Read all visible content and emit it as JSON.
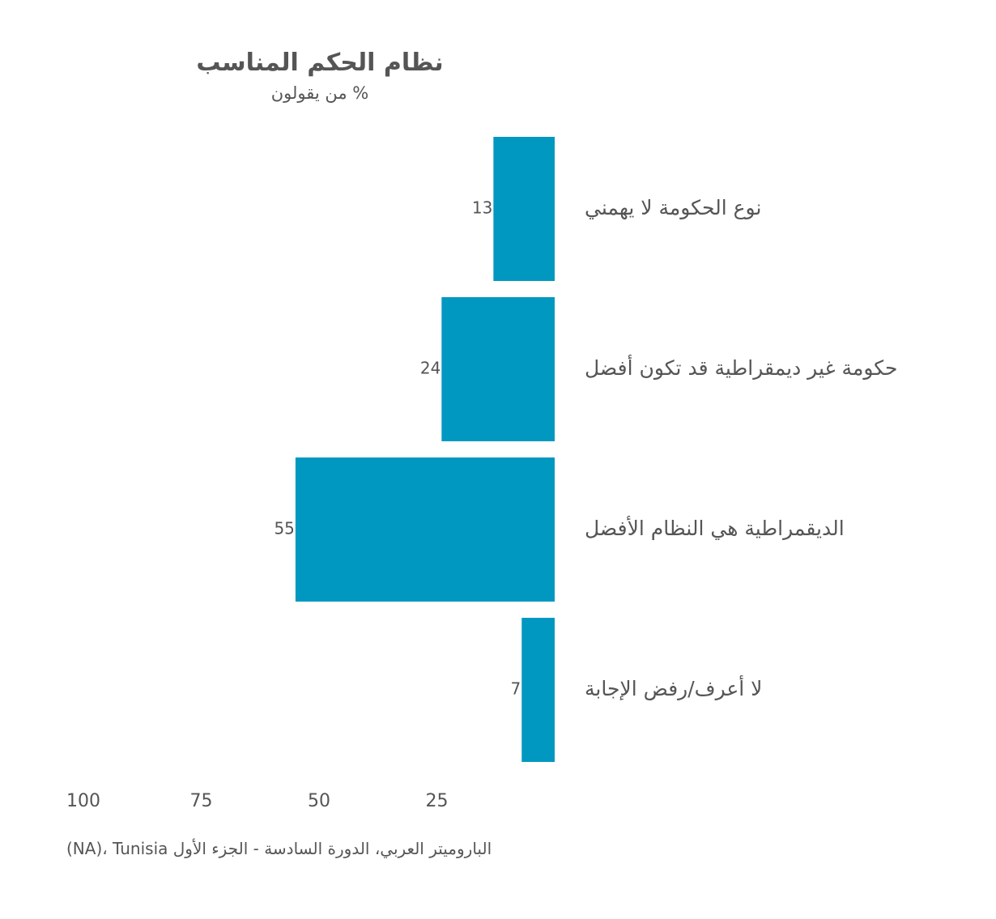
{
  "title": "نظام الحكم المناسب",
  "subtitle": "% من يقولون",
  "source": "(NA)، Tunisia الباروميتر العربي، الدورة السادسة - الجزء الأول",
  "colors": {
    "bar": "#0098c0",
    "text": "#555555",
    "background": "#ffffff"
  },
  "chart_data": {
    "type": "bar",
    "orientation": "horizontal",
    "direction": "right-to-left",
    "categories": [
      "نوع الحكومة لا يهمني",
      "حكومة غير ديمقراطية قد تكون أفضل",
      "الديقمراطية هي النظام الأفضل",
      "لا أعرف/رفض الإجابة"
    ],
    "values": [
      13,
      24,
      55,
      7
    ],
    "xlim": [
      0,
      100
    ],
    "x_ticks": [
      "100",
      "75",
      "50",
      "25"
    ],
    "x_tick_values": [
      100,
      75,
      50,
      25
    ],
    "grid": false,
    "legend": "none",
    "title": "نظام الحكم المناسب",
    "subtitle": "% من يقولون",
    "xlabel": "",
    "ylabel": ""
  }
}
